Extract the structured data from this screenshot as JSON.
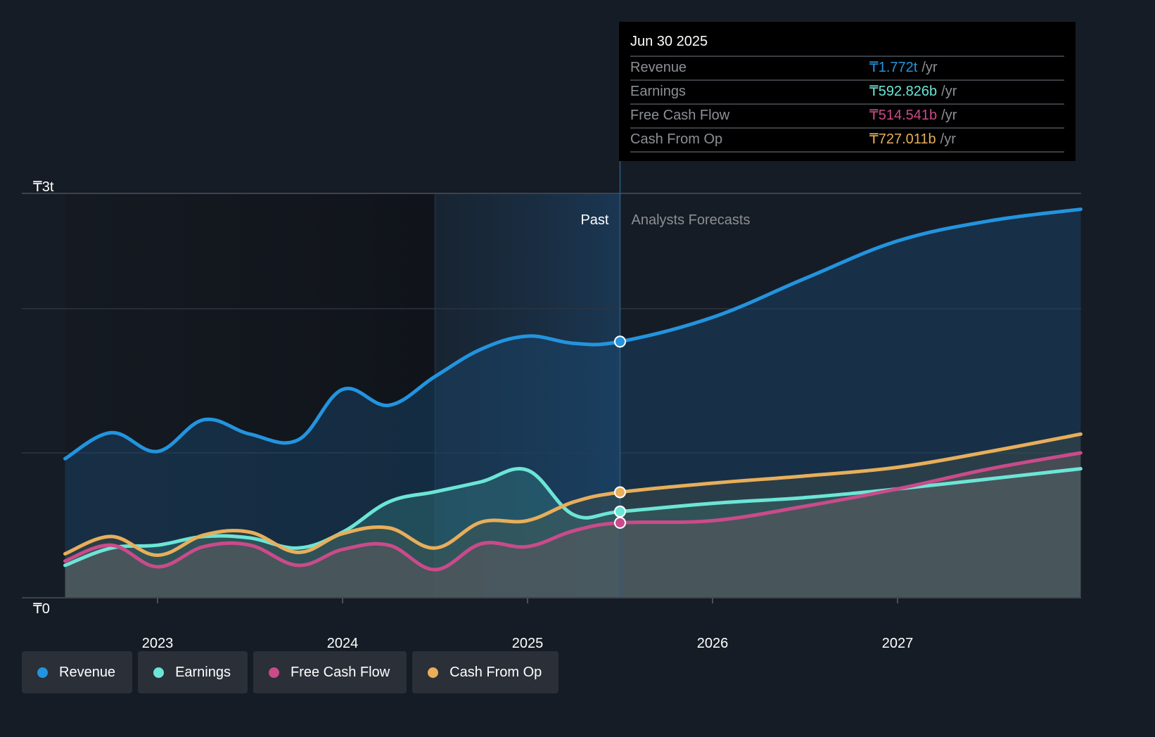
{
  "tooltip": {
    "date": "Jun 30 2025",
    "rows": [
      {
        "label": "Revenue",
        "value": "₸1.772t",
        "unit": "/yr",
        "color": "#2394df"
      },
      {
        "label": "Earnings",
        "value": "₸592.826b",
        "unit": "/yr",
        "color": "#6ce5d6"
      },
      {
        "label": "Free Cash Flow",
        "value": "₸514.541b",
        "unit": "/yr",
        "color": "#c94b8a"
      },
      {
        "label": "Cash From Op",
        "value": "₸727.011b",
        "unit": "/yr",
        "color": "#e8ae5a"
      }
    ]
  },
  "legend": [
    {
      "label": "Revenue",
      "color": "#2394df"
    },
    {
      "label": "Earnings",
      "color": "#6ce5d6"
    },
    {
      "label": "Free Cash Flow",
      "color": "#c94b8a"
    },
    {
      "label": "Cash From Op",
      "color": "#e8ae5a"
    }
  ],
  "chart_data": {
    "type": "area",
    "title": "",
    "xlabel": "",
    "ylabel": "",
    "y_tick_labels": [
      "₸0",
      "₸3t"
    ],
    "x_tick_labels": [
      "2023",
      "2024",
      "2025",
      "2026",
      "2027"
    ],
    "x_ticks": [
      2023,
      2024,
      2025,
      2026,
      2027
    ],
    "xlim": [
      2022.3,
      2027.99
    ],
    "ylim_trillions": [
      0,
      2.8
    ],
    "gridlines_trillions": [
      1.0,
      2.0,
      2.8
    ],
    "past_label": "Past",
    "forecast_label": "Analysts Forecasts",
    "divider_x": 2025.5,
    "highlight_start_x": 2024.5,
    "units": "trillions KZT (annualized)",
    "series": [
      {
        "name": "Revenue",
        "color": "#2394df",
        "x": [
          2022.5,
          2022.75,
          2023.0,
          2023.25,
          2023.5,
          2023.76,
          2024.0,
          2024.25,
          2024.5,
          2024.75,
          2025.0,
          2025.25,
          2025.5,
          2026.0,
          2026.5,
          2027.0,
          2027.5,
          2027.99
        ],
        "values": [
          0.96,
          1.14,
          1.01,
          1.23,
          1.13,
          1.09,
          1.44,
          1.33,
          1.53,
          1.72,
          1.81,
          1.76,
          1.772,
          1.94,
          2.21,
          2.47,
          2.61,
          2.69
        ]
      },
      {
        "name": "Earnings",
        "color": "#6ce5d6",
        "x": [
          2022.5,
          2022.75,
          2023.0,
          2023.25,
          2023.5,
          2023.76,
          2024.0,
          2024.25,
          2024.5,
          2024.75,
          2025.0,
          2025.25,
          2025.5,
          2026.0,
          2026.5,
          2027.0,
          2027.5,
          2027.99
        ],
        "values": [
          0.22,
          0.34,
          0.36,
          0.42,
          0.41,
          0.34,
          0.45,
          0.66,
          0.73,
          0.8,
          0.88,
          0.57,
          0.593,
          0.65,
          0.69,
          0.75,
          0.82,
          0.89
        ]
      },
      {
        "name": "Free Cash Flow",
        "color": "#c94b8a",
        "x": [
          2022.5,
          2022.75,
          2023.0,
          2023.25,
          2023.5,
          2023.76,
          2024.0,
          2024.25,
          2024.5,
          2024.75,
          2025.0,
          2025.25,
          2025.5,
          2026.0,
          2026.5,
          2027.0,
          2027.5,
          2027.99
        ],
        "values": [
          0.25,
          0.36,
          0.21,
          0.35,
          0.36,
          0.22,
          0.33,
          0.36,
          0.19,
          0.37,
          0.35,
          0.46,
          0.515,
          0.53,
          0.63,
          0.75,
          0.89,
          1.0
        ]
      },
      {
        "name": "Cash From Op",
        "color": "#e8ae5a",
        "x": [
          2022.5,
          2022.75,
          2023.0,
          2023.25,
          2023.5,
          2023.76,
          2024.0,
          2024.25,
          2024.5,
          2024.75,
          2025.0,
          2025.25,
          2025.5,
          2026.0,
          2026.5,
          2027.0,
          2027.5,
          2027.99
        ],
        "values": [
          0.3,
          0.42,
          0.29,
          0.43,
          0.45,
          0.31,
          0.44,
          0.48,
          0.34,
          0.52,
          0.53,
          0.66,
          0.727,
          0.79,
          0.84,
          0.9,
          1.01,
          1.13
        ]
      }
    ]
  }
}
